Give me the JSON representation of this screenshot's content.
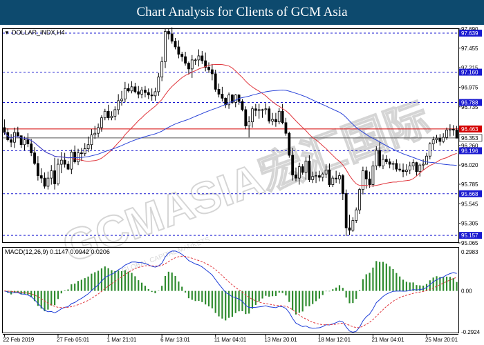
{
  "banner": {
    "title": "Chart Analysis for Clients of GCM Asia"
  },
  "watermark": {
    "text": "GCMASIA宏汇国际",
    "subtext": "GLOBAL CAPITAL MARKETS"
  },
  "colors": {
    "banner_bg": "#0d4a6e",
    "bull_candle": "#ffffff",
    "bear_candle": "#000000",
    "fast_ma": "#e0353c",
    "slow_ma": "#2a43d8",
    "resistance_line": "#1a1ad0",
    "highlight_line": "#d40000",
    "current_price_line": "#555555",
    "macd_line": "#1f3ed8",
    "signal_line": "#e0353c",
    "histogram": "#2e8b2e"
  },
  "chart_data": [
    {
      "type": "candlestick",
      "title": "DOLLAR_INDX,H4",
      "ylim": [
        95.065,
        97.69
      ],
      "y_ticks": [
        "97.690",
        "97.455",
        "97.215",
        "96.975",
        "96.735",
        "96.260",
        "96.020",
        "95.785",
        "95.545",
        "95.305",
        "95.065"
      ],
      "x_ticks": [
        "22 Feb 2019",
        "27 Feb 05:01",
        "1 Mar 21:01",
        "6 Mar 13:01",
        "11 Mar 04:01",
        "13 Mar 20:01",
        "18 Mar 12:01",
        "21 Mar 04:01",
        "25 Mar 20:01"
      ],
      "current_price": 96.353,
      "levels": [
        {
          "label": "97.639",
          "value": 97.639,
          "style": "dashed"
        },
        {
          "label": "97.160",
          "value": 97.16,
          "style": "dashed"
        },
        {
          "label": "96.788",
          "value": 96.788,
          "style": "dashed"
        },
        {
          "label": "96.463",
          "value": 96.463,
          "style": "highlight"
        },
        {
          "label": "96.196",
          "value": 96.196,
          "style": "dashed"
        },
        {
          "label": "95.668",
          "value": 95.668,
          "style": "dashed"
        },
        {
          "label": "95.157",
          "value": 95.157,
          "style": "dashed"
        }
      ],
      "series": [
        {
          "kind": "ohlc",
          "open": [
            96.48,
            96.42,
            96.33,
            96.3,
            96.42,
            96.38,
            96.27,
            96.33,
            96.28,
            96.17,
            96.04,
            95.89,
            95.86,
            95.76,
            95.86,
            95.95,
            95.79,
            96.03,
            96.08,
            96.03,
            95.97,
            96.18,
            96.06,
            96.17,
            96.16,
            96.22,
            96.27,
            96.39,
            96.41,
            96.48,
            96.6,
            96.68,
            96.6,
            96.62,
            96.7,
            96.81,
            96.83,
            96.96,
            96.93,
            96.98,
            96.92,
            96.89,
            96.94,
            96.91,
            96.88,
            96.87,
            96.92,
            97.1,
            97.29,
            97.66,
            97.63,
            97.54,
            97.47,
            97.38,
            97.35,
            97.27,
            97.2,
            97.31,
            97.31,
            97.36,
            97.3,
            97.22,
            97.19,
            97.14,
            96.95,
            96.89,
            96.84,
            96.76,
            96.88,
            96.79,
            96.88,
            96.8,
            96.7,
            96.5,
            96.55,
            96.71,
            96.69,
            96.7,
            96.7,
            96.71,
            96.56,
            96.58,
            96.55,
            96.68,
            96.54,
            96.41,
            96.14,
            95.9,
            95.86,
            96.0,
            95.93,
            96.07,
            95.84,
            95.88,
            95.89,
            95.87,
            95.91,
            95.96,
            95.78,
            95.86,
            95.85,
            95.89,
            95.67,
            95.25,
            95.22,
            95.34,
            95.47,
            95.72,
            95.95,
            95.85,
            95.78,
            96.01,
            96.2,
            96.01,
            96.09,
            96.06,
            96.03,
            96.04,
            95.97,
            95.96,
            95.94,
            95.96,
            96.01,
            96.05,
            95.94,
            96.02,
            96.03,
            96.13,
            96.28,
            96.33,
            96.35,
            96.31,
            96.36,
            96.45,
            96.46,
            96.45
          ],
          "high": [
            96.58,
            96.47,
            96.4,
            96.48,
            96.49,
            96.38,
            96.37,
            96.41,
            96.34,
            96.24,
            96.13,
            95.98,
            95.93,
            95.94,
            96.02,
            96.11,
            96.1,
            96.18,
            96.17,
            96.07,
            96.21,
            96.26,
            96.22,
            96.23,
            96.29,
            96.37,
            96.46,
            96.5,
            96.53,
            96.63,
            96.71,
            96.76,
            96.68,
            96.74,
            96.89,
            96.93,
            97.04,
            97.02,
            97.05,
            97.03,
            96.99,
            96.98,
            96.99,
            96.96,
            96.96,
            96.97,
            97.15,
            97.35,
            97.7,
            97.7,
            97.71,
            97.58,
            97.55,
            97.41,
            97.41,
            97.29,
            97.37,
            97.33,
            97.44,
            97.42,
            97.4,
            97.28,
            97.26,
            97.19,
            97.02,
            96.98,
            96.85,
            96.91,
            96.89,
            96.89,
            96.89,
            96.83,
            96.74,
            96.62,
            96.74,
            96.77,
            96.77,
            96.71,
            96.78,
            96.74,
            96.66,
            96.66,
            96.72,
            96.77,
            96.6,
            96.43,
            96.23,
            95.99,
            96.05,
            96.03,
            96.12,
            96.14,
            95.94,
            95.94,
            95.95,
            95.93,
            96.03,
            96.04,
            95.89,
            95.95,
            95.93,
            95.91,
            95.72,
            95.41,
            95.38,
            95.5,
            95.74,
            96.0,
            96.0,
            95.94,
            96.07,
            96.25,
            96.31,
            96.15,
            96.14,
            96.1,
            96.07,
            96.09,
            96.04,
            96.04,
            96.03,
            96.06,
            96.09,
            96.06,
            96.04,
            96.09,
            96.17,
            96.3,
            96.37,
            96.39,
            96.4,
            96.41,
            96.48,
            96.52,
            96.51,
            96.5
          ],
          "low": [
            96.39,
            96.31,
            96.24,
            96.23,
            96.36,
            96.23,
            96.2,
            96.24,
            96.13,
            96.02,
            95.83,
            95.8,
            95.73,
            95.72,
            95.78,
            95.72,
            95.77,
            95.92,
            95.99,
            95.96,
            95.91,
            96.04,
            96.02,
            96.07,
            96.13,
            96.18,
            96.21,
            96.34,
            96.36,
            96.43,
            96.57,
            96.57,
            96.57,
            96.57,
            96.64,
            96.75,
            96.79,
            96.91,
            96.9,
            96.9,
            96.84,
            96.84,
            96.85,
            96.83,
            96.81,
            96.81,
            96.87,
            97.05,
            97.21,
            97.56,
            97.51,
            97.44,
            97.33,
            97.29,
            97.24,
            97.13,
            97.09,
            97.25,
            97.23,
            97.26,
            97.17,
            97.15,
            97.06,
            96.92,
            96.85,
            96.8,
            96.72,
            96.71,
            96.77,
            96.73,
            96.76,
            96.68,
            96.46,
            96.36,
            96.48,
            96.62,
            96.59,
            96.6,
            96.64,
            96.53,
            96.51,
            96.49,
            96.52,
            96.52,
            96.38,
            96.11,
            95.83,
            95.82,
            95.78,
            95.9,
            95.84,
            95.81,
            95.8,
            95.8,
            95.82,
            95.82,
            95.86,
            95.75,
            95.75,
            95.8,
            95.79,
            95.59,
            95.15,
            95.16,
            95.2,
            95.31,
            95.42,
            95.66,
            95.73,
            95.74,
            95.75,
            95.96,
            95.99,
            95.97,
            96.03,
            95.98,
            95.96,
            95.94,
            95.94,
            95.87,
            95.89,
            95.91,
            95.96,
            95.89,
            95.88,
            95.96,
            96.03,
            96.09,
            96.2,
            96.29,
            96.26,
            96.29,
            96.33,
            96.37,
            96.38,
            96.36
          ],
          "close": [
            96.42,
            96.33,
            96.3,
            96.42,
            96.38,
            96.27,
            96.33,
            96.28,
            96.17,
            96.04,
            95.89,
            95.86,
            95.76,
            95.86,
            95.95,
            95.79,
            96.03,
            96.08,
            96.03,
            95.97,
            96.18,
            96.06,
            96.17,
            96.16,
            96.22,
            96.27,
            96.39,
            96.41,
            96.48,
            96.6,
            96.68,
            96.6,
            96.62,
            96.7,
            96.81,
            96.83,
            96.96,
            96.93,
            96.98,
            96.92,
            96.89,
            96.94,
            96.91,
            96.88,
            96.87,
            96.92,
            97.1,
            97.29,
            97.66,
            97.63,
            97.54,
            97.47,
            97.38,
            97.35,
            97.27,
            97.2,
            97.31,
            97.31,
            97.36,
            97.3,
            97.22,
            97.19,
            97.14,
            96.95,
            96.89,
            96.84,
            96.76,
            96.88,
            96.79,
            96.88,
            96.8,
            96.7,
            96.5,
            96.55,
            96.71,
            96.69,
            96.7,
            96.7,
            96.71,
            96.56,
            96.58,
            96.55,
            96.68,
            96.54,
            96.41,
            96.14,
            95.9,
            95.86,
            96.0,
            95.93,
            96.07,
            95.84,
            95.88,
            95.89,
            95.87,
            95.91,
            95.96,
            95.78,
            95.86,
            95.85,
            95.89,
            95.67,
            95.25,
            95.22,
            95.34,
            95.47,
            95.72,
            95.95,
            95.85,
            95.78,
            96.01,
            96.2,
            96.01,
            96.09,
            96.06,
            96.03,
            96.04,
            95.97,
            95.96,
            95.94,
            95.96,
            96.01,
            96.05,
            95.94,
            96.02,
            96.03,
            96.13,
            96.28,
            96.33,
            96.35,
            96.31,
            96.36,
            96.45,
            96.46,
            96.45,
            96.35
          ]
        },
        {
          "kind": "moving_average",
          "period": 21,
          "style": "fast"
        },
        {
          "kind": "moving_average",
          "period": 55,
          "style": "slow"
        }
      ]
    },
    {
      "type": "macd",
      "title": "MACD(12,26,9) 0.1147 0.0942 0.0206",
      "ylim": [
        -0.2924,
        0.2983
      ],
      "y_ticks": [
        "0.2983",
        "0.00",
        "-0.2924"
      ],
      "series": [
        {
          "kind": "macd_line",
          "fast": 12,
          "slow": 26
        },
        {
          "kind": "signal_line",
          "period": 9
        },
        {
          "kind": "histogram"
        }
      ]
    }
  ]
}
